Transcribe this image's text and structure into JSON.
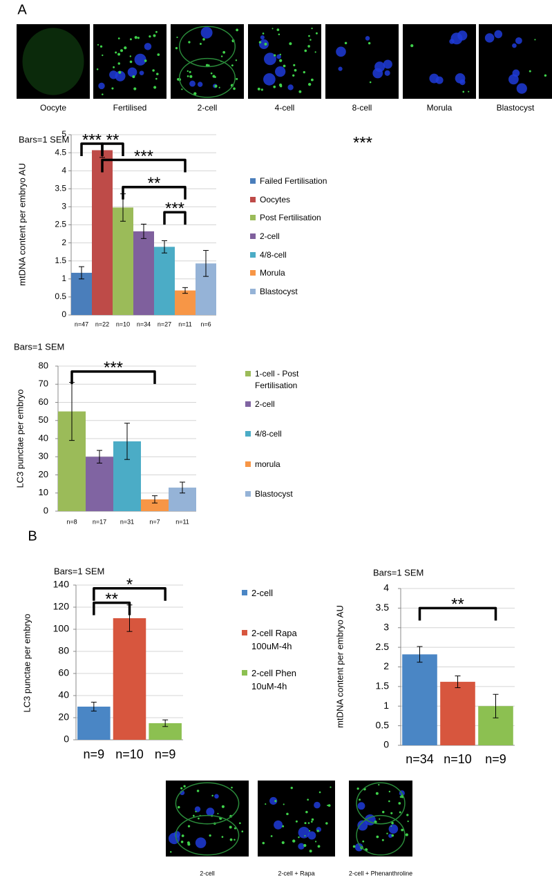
{
  "panel_labels": [
    "A",
    "B"
  ],
  "images_top": {
    "captions": [
      "Oocyte",
      "Fertilised",
      "2-cell",
      "4-cell",
      "8-cell",
      "Morula",
      "Blastocyst"
    ]
  },
  "images_bottom": {
    "captions": [
      "2-cell",
      "2-cell + Rapa",
      "2-cell + Phenanthroline"
    ]
  },
  "chart_data": [
    {
      "type": "bar",
      "title": "Bars=1 SEM",
      "y_label": "mtDNA content per embryo AU",
      "categories": [
        "n=47",
        "n=22",
        "n=10",
        "n=34",
        "n=27",
        "n=11",
        "n=6"
      ],
      "values": [
        1.17,
        4.57,
        2.98,
        2.32,
        1.89,
        0.68,
        1.43
      ],
      "errors": [
        0.17,
        0.2,
        0.38,
        0.2,
        0.17,
        0.08,
        0.36
      ],
      "colors": [
        "#4a7ebb",
        "#be4b48",
        "#9bbb59",
        "#7f609d",
        "#4bacc6",
        "#f79646",
        "#95b3d7"
      ],
      "legend": [
        "Failed Fertilisation",
        "Oocytes",
        "Post Fertilisation",
        "2-cell",
        "4/8-cell",
        "Morula",
        "Blastocyst"
      ],
      "ylim": [
        0,
        5
      ],
      "yticks": [
        0,
        0.5,
        1,
        1.5,
        2,
        2.5,
        3,
        3.5,
        4,
        4.5,
        5
      ],
      "grid": true,
      "significance": [
        {
          "label": "***",
          "from": 0,
          "to": 1,
          "y": 4.75
        },
        {
          "label": "**",
          "from": 1,
          "to": 2,
          "y": 4.75
        },
        {
          "label": "***",
          "from": 1,
          "to": 5,
          "y": 4.3
        },
        {
          "label": "**",
          "from": 2,
          "to": 5,
          "y": 3.55
        },
        {
          "label": "***",
          "from": 4,
          "to": 5,
          "y": 2.85
        }
      ],
      "annotation": "***"
    },
    {
      "type": "bar",
      "title": "Bars=1 SEM",
      "y_label": "LC3 punctae per embryo",
      "categories": [
        "n=8",
        "n=17",
        "n=31",
        "n=7",
        "n=11"
      ],
      "values": [
        55,
        30,
        38.5,
        6.5,
        13
      ],
      "errors": [
        16,
        3.5,
        10,
        2,
        3
      ],
      "colors": [
        "#9bbb59",
        "#8064a2",
        "#4bacc6",
        "#f79646",
        "#95b3d7"
      ],
      "legend": [
        "1-cell - Post Fertilisation",
        "2-cell",
        "4/8-cell",
        "morula",
        "Blastocyst"
      ],
      "ylim": [
        0,
        80
      ],
      "yticks": [
        0,
        10,
        20,
        30,
        40,
        50,
        60,
        70,
        80
      ],
      "grid": true,
      "significance": [
        {
          "label": "***",
          "from": 0,
          "to": 3,
          "y": 77
        }
      ]
    },
    {
      "type": "bar",
      "title": "Bars=1 SEM",
      "y_label": "LC3 punctae per embryo",
      "categories": [
        "n=9",
        "n=10",
        "n=9"
      ],
      "values": [
        30,
        110,
        15
      ],
      "errors": [
        4,
        12,
        3
      ],
      "colors": [
        "#4a86c5",
        "#d7563e",
        "#8cc051"
      ],
      "legend": [
        "2-cell",
        "2-cell Rapa 100uM-4h",
        "2-cell Phen 10uM-4h"
      ],
      "ylim": [
        0,
        140
      ],
      "yticks": [
        0,
        20,
        40,
        60,
        80,
        100,
        120,
        140
      ],
      "grid": true,
      "significance": [
        {
          "label": "**",
          "from": 0,
          "to": 1,
          "y": 124
        },
        {
          "label": "*",
          "from": 0,
          "to": 2,
          "y": 137
        }
      ]
    },
    {
      "type": "bar",
      "title": "Bars=1 SEM",
      "y_label": "mtDNA content per embryo AU",
      "categories": [
        "n=34",
        "n=10",
        "n=9"
      ],
      "values": [
        2.32,
        1.62,
        1.0
      ],
      "errors": [
        0.2,
        0.15,
        0.3
      ],
      "colors": [
        "#4a86c5",
        "#d7563e",
        "#8cc051"
      ],
      "ylim": [
        0,
        4
      ],
      "yticks": [
        0,
        0.5,
        1,
        1.5,
        2,
        2.5,
        3,
        3.5,
        4
      ],
      "grid": true,
      "significance": [
        {
          "label": "**",
          "from": 0,
          "to": 2,
          "y": 3.5
        }
      ]
    }
  ]
}
